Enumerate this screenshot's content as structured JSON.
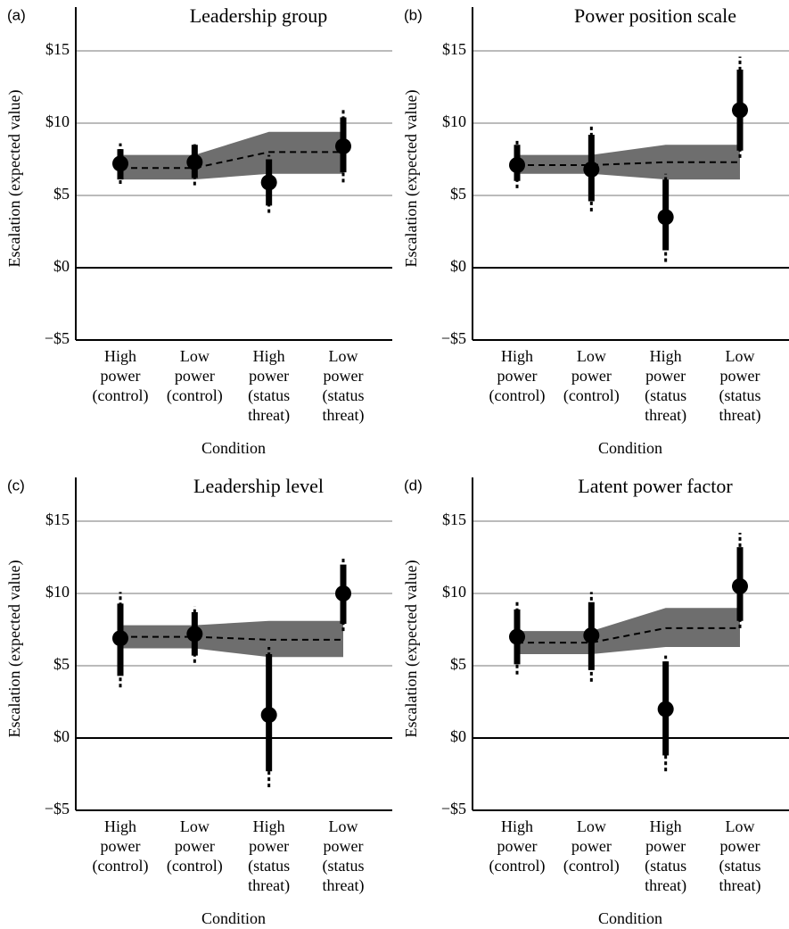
{
  "chart_data": [
    {
      "type": "interval",
      "panel": "(a)",
      "title": "Leadership group",
      "ylabel": "Escalation (expected value)",
      "xlabel": "Condition",
      "categories": [
        [
          "High",
          "power",
          "(control)"
        ],
        [
          "Low",
          "power",
          "(control)"
        ],
        [
          "High",
          "power",
          "(status",
          "threat)"
        ],
        [
          "Low",
          "power",
          "(status",
          "threat)"
        ]
      ],
      "values": [
        7.2,
        7.3,
        5.9,
        8.4
      ],
      "inner_low": [
        6.1,
        6.2,
        4.3,
        6.6
      ],
      "inner_high": [
        8.2,
        8.5,
        7.5,
        10.4
      ],
      "outer_low": [
        5.8,
        5.7,
        3.8,
        5.9
      ],
      "outer_high": [
        8.6,
        8.7,
        7.8,
        10.9
      ],
      "fit": [
        6.9,
        6.9,
        8.0,
        8.0
      ],
      "fit_low": [
        6.1,
        6.1,
        6.5,
        6.5
      ],
      "fit_high": [
        7.8,
        7.8,
        9.4,
        9.4
      ],
      "color": "#000000",
      "band_color": "#6e6e6e",
      "grid": true,
      "ylim": [
        -5,
        17.5
      ],
      "yticks": [
        {
          "value": -5,
          "label": "−$5"
        },
        {
          "value": 0,
          "label": "$0"
        },
        {
          "value": 5,
          "label": "$5"
        },
        {
          "value": 10,
          "label": "$10"
        },
        {
          "value": 15,
          "label": "$15"
        }
      ]
    },
    {
      "type": "interval",
      "panel": "(b)",
      "title": "Power position scale",
      "ylabel": "Escalation (expected value)",
      "xlabel": "Condition",
      "categories": [
        [
          "High",
          "power",
          "(control)"
        ],
        [
          "Low",
          "power",
          "(control)"
        ],
        [
          "High",
          "power",
          "(status",
          "threat)"
        ],
        [
          "Low",
          "power",
          "(status",
          "threat)"
        ]
      ],
      "values": [
        7.1,
        6.8,
        3.5,
        10.9
      ],
      "inner_low": [
        6.0,
        4.6,
        1.2,
        8.1
      ],
      "inner_high": [
        8.5,
        9.2,
        6.1,
        13.7
      ],
      "outer_low": [
        5.5,
        3.9,
        0.4,
        7.6
      ],
      "outer_high": [
        8.9,
        9.9,
        6.5,
        14.6
      ],
      "fit": [
        7.1,
        7.1,
        7.3,
        7.3
      ],
      "fit_low": [
        6.5,
        6.5,
        6.1,
        6.1
      ],
      "fit_high": [
        7.8,
        7.8,
        8.5,
        8.5
      ],
      "color": "#000000",
      "band_color": "#6e6e6e",
      "grid": true,
      "ylim": [
        -5,
        17.5
      ],
      "yticks": [
        {
          "value": -5,
          "label": "−$5"
        },
        {
          "value": 0,
          "label": "$0"
        },
        {
          "value": 5,
          "label": "$5"
        },
        {
          "value": 10,
          "label": "$10"
        },
        {
          "value": 15,
          "label": "$15"
        }
      ]
    },
    {
      "type": "interval",
      "panel": "(c)",
      "title": "Leadership level",
      "ylabel": "Escalation (expected value)",
      "xlabel": "Condition",
      "categories": [
        [
          "High",
          "power",
          "(control)"
        ],
        [
          "Low",
          "power",
          "(control)"
        ],
        [
          "High",
          "power",
          "(status",
          "threat)"
        ],
        [
          "Low",
          "power",
          "(status",
          "threat)"
        ]
      ],
      "values": [
        6.9,
        7.2,
        1.6,
        10.0
      ],
      "inner_low": [
        4.3,
        5.7,
        -2.3,
        7.9
      ],
      "inner_high": [
        9.3,
        8.7,
        5.8,
        12.0
      ],
      "outer_low": [
        3.5,
        5.2,
        -3.4,
        7.4
      ],
      "outer_high": [
        10.1,
        9.1,
        6.3,
        12.4
      ],
      "fit": [
        7.0,
        7.0,
        6.8,
        6.8
      ],
      "fit_low": [
        6.2,
        6.2,
        5.6,
        5.6
      ],
      "fit_high": [
        7.8,
        7.8,
        8.1,
        8.1
      ],
      "color": "#000000",
      "band_color": "#6e6e6e",
      "grid": true,
      "ylim": [
        -5,
        17.5
      ],
      "yticks": [
        {
          "value": -5,
          "label": "−$5"
        },
        {
          "value": 0,
          "label": "$0"
        },
        {
          "value": 5,
          "label": "$5"
        },
        {
          "value": 10,
          "label": "$10"
        },
        {
          "value": 15,
          "label": "$15"
        }
      ]
    },
    {
      "type": "interval",
      "panel": "(d)",
      "title": "Latent power factor",
      "ylabel": "Escalation (expected value)",
      "xlabel": "Condition",
      "categories": [
        [
          "High",
          "power",
          "(control)"
        ],
        [
          "Low",
          "power",
          "(control)"
        ],
        [
          "High",
          "power",
          "(status",
          "threat)"
        ],
        [
          "Low",
          "power",
          "(status",
          "threat)"
        ]
      ],
      "values": [
        7.0,
        7.1,
        2.0,
        10.5
      ],
      "inner_low": [
        5.1,
        4.7,
        -1.2,
        8.1
      ],
      "inner_high": [
        8.9,
        9.4,
        5.3,
        13.2
      ],
      "outer_low": [
        4.4,
        3.9,
        -2.3,
        7.6
      ],
      "outer_high": [
        9.4,
        10.1,
        5.7,
        14.2
      ],
      "fit": [
        6.6,
        6.6,
        7.6,
        7.6
      ],
      "fit_low": [
        5.8,
        5.8,
        6.3,
        6.3
      ],
      "fit_high": [
        7.4,
        7.4,
        9.0,
        9.0
      ],
      "color": "#000000",
      "band_color": "#6e6e6e",
      "grid": true,
      "ylim": [
        -5,
        17.5
      ],
      "yticks": [
        {
          "value": -5,
          "label": "−$5"
        },
        {
          "value": 0,
          "label": "$0"
        },
        {
          "value": 5,
          "label": "$5"
        },
        {
          "value": 10,
          "label": "$10"
        },
        {
          "value": 15,
          "label": "$15"
        }
      ]
    }
  ]
}
